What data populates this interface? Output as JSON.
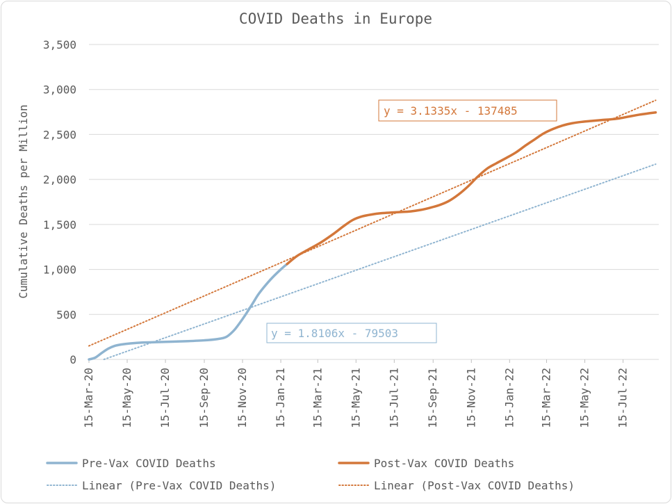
{
  "chart_data": {
    "type": "line",
    "title": "COVID Deaths in Europe",
    "ylabel": "Cumulative Deaths per Million",
    "xlabel": "",
    "ylim": [
      0,
      3500
    ],
    "y_ticks": [
      "0",
      "500",
      "1,000",
      "1,500",
      "2,000",
      "2,500",
      "3,000",
      "3,500"
    ],
    "y_tick_values": [
      0,
      500,
      1000,
      1500,
      2000,
      2500,
      3000,
      3500
    ],
    "x_range": [
      "2020-03-15",
      "2022-09-10"
    ],
    "x_ticks": [
      "15-Mar-20",
      "15-May-20",
      "15-Jul-20",
      "15-Sep-20",
      "15-Nov-20",
      "15-Jan-21",
      "15-Mar-21",
      "15-May-21",
      "15-Jul-21",
      "15-Sep-21",
      "15-Nov-21",
      "15-Jan-22",
      "15-Mar-22",
      "15-May-22",
      "15-Jul-22"
    ],
    "x_tick_dates": [
      "2020-03-15",
      "2020-05-15",
      "2020-07-15",
      "2020-09-15",
      "2020-11-15",
      "2021-01-15",
      "2021-03-15",
      "2021-05-15",
      "2021-07-15",
      "2021-09-15",
      "2021-11-15",
      "2022-01-15",
      "2022-03-15",
      "2022-05-15",
      "2022-07-15"
    ],
    "grid": "horizontal",
    "legend_position": "bottom",
    "series": [
      {
        "name": "Pre-Vax COVID Deaths",
        "color": "#8fb4d0",
        "style": "solid",
        "points": [
          [
            "2020-03-15",
            0
          ],
          [
            "2020-03-25",
            20
          ],
          [
            "2020-04-05",
            75
          ],
          [
            "2020-04-15",
            120
          ],
          [
            "2020-04-25",
            150
          ],
          [
            "2020-05-05",
            165
          ],
          [
            "2020-05-20",
            178
          ],
          [
            "2020-06-10",
            188
          ],
          [
            "2020-07-01",
            192
          ],
          [
            "2020-07-25",
            197
          ],
          [
            "2020-08-20",
            203
          ],
          [
            "2020-09-15",
            212
          ],
          [
            "2020-10-05",
            225
          ],
          [
            "2020-10-20",
            250
          ],
          [
            "2020-11-01",
            320
          ],
          [
            "2020-11-10",
            400
          ],
          [
            "2020-11-20",
            500
          ],
          [
            "2020-12-01",
            620
          ],
          [
            "2020-12-10",
            720
          ],
          [
            "2020-12-20",
            810
          ],
          [
            "2021-01-01",
            905
          ],
          [
            "2021-01-15",
            1000
          ],
          [
            "2021-01-25",
            1060
          ]
        ]
      },
      {
        "name": "Post-Vax COVID Deaths",
        "color": "#d3773a",
        "style": "solid",
        "points": [
          [
            "2021-01-25",
            1060
          ],
          [
            "2021-02-10",
            1150
          ],
          [
            "2021-03-01",
            1225
          ],
          [
            "2021-03-20",
            1300
          ],
          [
            "2021-04-10",
            1400
          ],
          [
            "2021-04-25",
            1480
          ],
          [
            "2021-05-10",
            1550
          ],
          [
            "2021-05-25",
            1590
          ],
          [
            "2021-06-10",
            1612
          ],
          [
            "2021-06-25",
            1625
          ],
          [
            "2021-07-10",
            1632
          ],
          [
            "2021-07-25",
            1638
          ],
          [
            "2021-08-10",
            1645
          ],
          [
            "2021-08-25",
            1660
          ],
          [
            "2021-09-10",
            1685
          ],
          [
            "2021-09-25",
            1715
          ],
          [
            "2021-10-10",
            1760
          ],
          [
            "2021-10-25",
            1830
          ],
          [
            "2021-11-10",
            1925
          ],
          [
            "2021-11-25",
            2030
          ],
          [
            "2021-12-10",
            2120
          ],
          [
            "2021-12-25",
            2180
          ],
          [
            "2022-01-10",
            2240
          ],
          [
            "2022-01-25",
            2300
          ],
          [
            "2022-02-10",
            2380
          ],
          [
            "2022-02-25",
            2450
          ],
          [
            "2022-03-10",
            2510
          ],
          [
            "2022-03-25",
            2560
          ],
          [
            "2022-04-10",
            2600
          ],
          [
            "2022-04-25",
            2625
          ],
          [
            "2022-05-10",
            2640
          ],
          [
            "2022-05-25",
            2650
          ],
          [
            "2022-06-10",
            2660
          ],
          [
            "2022-06-25",
            2668
          ],
          [
            "2022-07-10",
            2680
          ],
          [
            "2022-07-25",
            2700
          ],
          [
            "2022-08-10",
            2720
          ],
          [
            "2022-08-25",
            2735
          ],
          [
            "2022-09-05",
            2745
          ]
        ]
      },
      {
        "name": "Linear (Pre-Vax COVID Deaths)",
        "color": "#8fb4d0",
        "style": "dotted",
        "points": [
          [
            "2020-04-08",
            0
          ],
          [
            "2022-09-05",
            2170
          ]
        ]
      },
      {
        "name": "Linear (Post-Vax COVID Deaths)",
        "color": "#d3773a",
        "style": "dotted",
        "points": [
          [
            "2020-03-15",
            150
          ],
          [
            "2022-09-05",
            2880
          ]
        ]
      }
    ],
    "annotations": [
      {
        "text": "y = 3.1335x - 137485",
        "color": "#d3773a",
        "near": "upper-right"
      },
      {
        "text": "y = 1.8106x - 79503",
        "color": "#8fb4d0",
        "near": "center-bottom"
      }
    ]
  }
}
